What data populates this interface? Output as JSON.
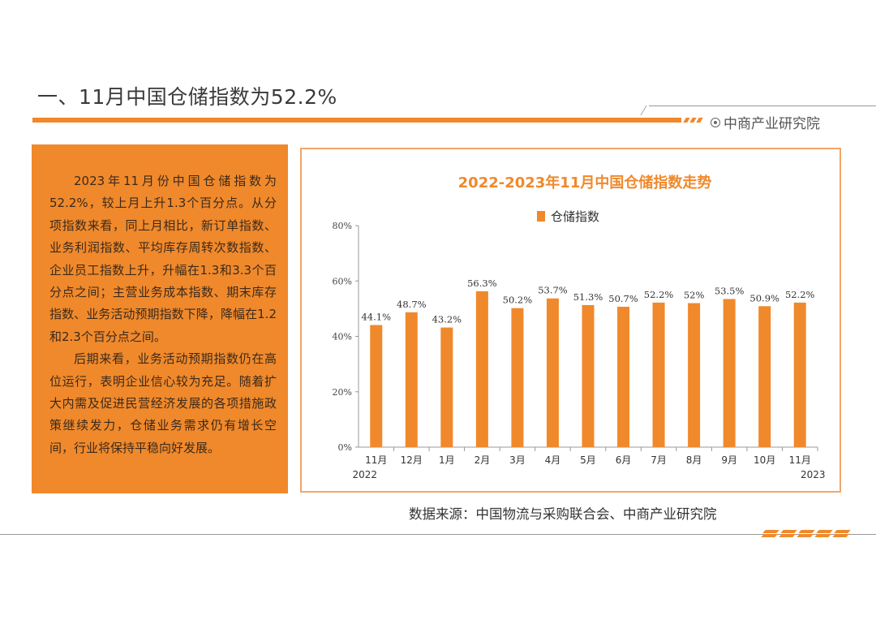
{
  "header": {
    "title": "一、11月中国仓储指数为52.2%",
    "brand": "中商产业研究院"
  },
  "summary": {
    "paragraph1": "2023年11月份中国仓储指数为52.2%，较上月上升1.3个百分点。从分项指数来看，同上月相比，新订单指数、业务利润指数、平均库存周转次数指数、企业员工指数上升，升幅在1.3和3.3个百分点之间；主营业务成本指数、期末库存指数、业务活动预期指数下降，降幅在1.2和2.3个百分点之间。",
    "paragraph2": "后期来看，业务活动预期指数仍在高位运行，表明企业信心较为充足。随着扩大内需及促进民营经济发展的各项措施政策继续发力，仓储业务需求仍有增长空间，行业将保持平稳向好发展。"
  },
  "footer": {
    "source": "数据来源：中国物流与采购联合会、中商产业研究院"
  },
  "colors": {
    "accent": "#f0892b",
    "title_color": "#f0892b",
    "border": "#f2a66a"
  },
  "chart_data": {
    "type": "bar",
    "title": "2022-2023年11月中国仓储指数走势",
    "legend": "仓储指数",
    "categories": [
      "11月",
      "12月",
      "1月",
      "2月",
      "3月",
      "4月",
      "5月",
      "6月",
      "7月",
      "8月",
      "9月",
      "10月",
      "11月"
    ],
    "values": [
      44.1,
      48.7,
      43.2,
      56.3,
      50.2,
      53.7,
      51.3,
      50.7,
      52.2,
      52,
      53.5,
      50.9,
      52.2
    ],
    "data_labels": [
      "44.1%",
      "48.7%",
      "43.2%",
      "56.3%",
      "50.2%",
      "53.7%",
      "51.3%",
      "50.7%",
      "52.2%",
      "52%",
      "53.5%",
      "50.9%",
      "52.2%"
    ],
    "y_ticks": [
      "0%",
      "20%",
      "40%",
      "60%",
      "80%"
    ],
    "ylim": [
      0,
      80
    ],
    "year_start": "2022",
    "year_end": "2023",
    "xlabel": "",
    "ylabel": ""
  }
}
